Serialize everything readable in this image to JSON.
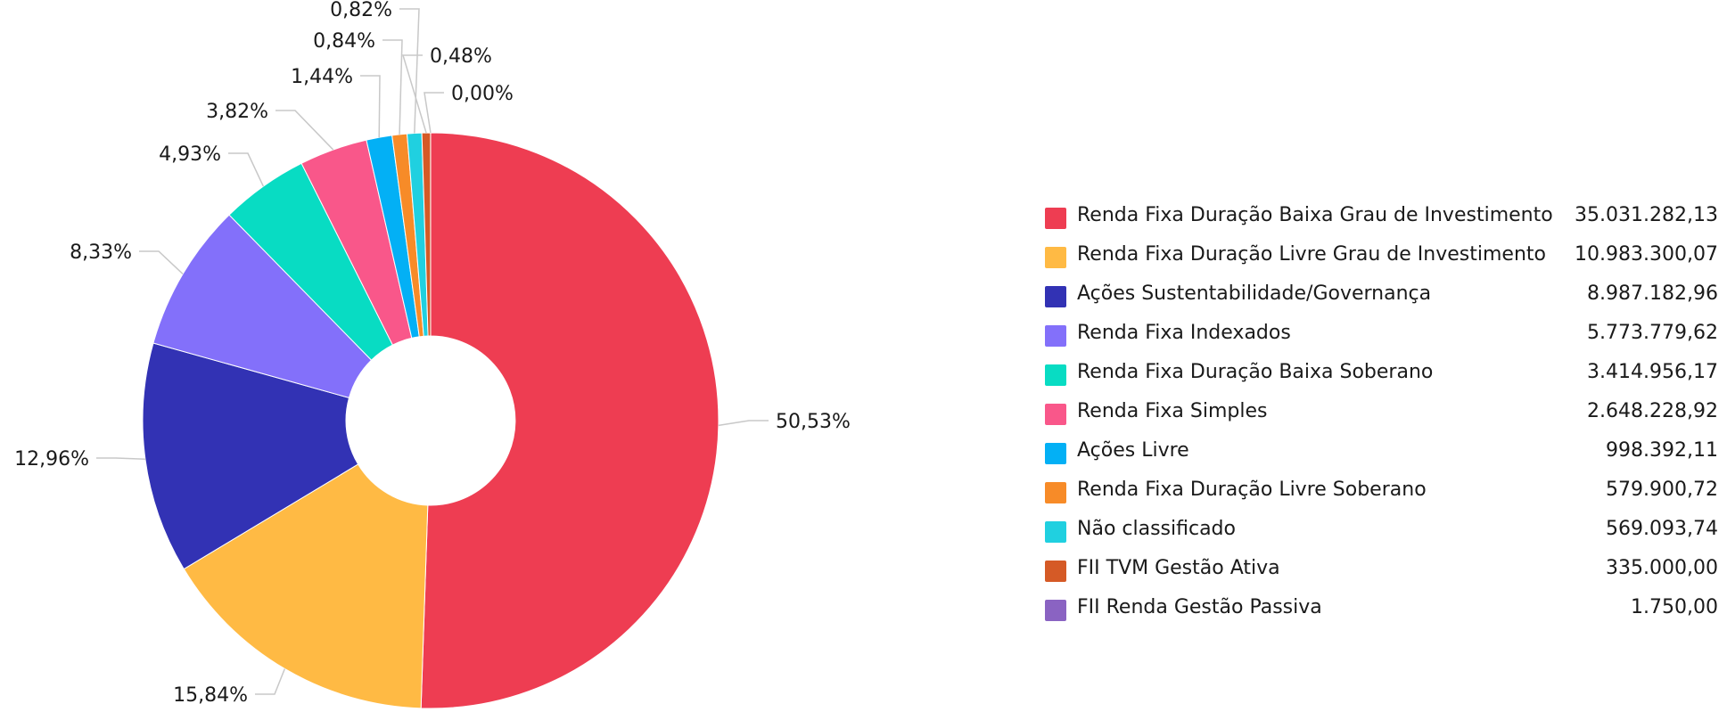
{
  "chart_data": {
    "type": "pie",
    "title": "",
    "donut": true,
    "legend_position": "right",
    "categories": [
      "Renda Fixa Duração Baixa Grau de Investimento",
      "Renda Fixa Duração Livre Grau de Investimento",
      "Ações Sustentabilidade/Governança",
      "Renda Fixa Indexados",
      "Renda Fixa Duração Baixa Soberano",
      "Renda Fixa Simples",
      "Ações Livre",
      "Renda Fixa Duração Livre Soberano",
      "Não classificado",
      "FII TVM Gestão Ativa",
      "FII Renda Gestão Passiva"
    ],
    "values": [
      35031282.13,
      10983300.07,
      8987182.96,
      5773779.62,
      3414956.17,
      2648228.92,
      998392.11,
      579900.72,
      569093.74,
      335000.0,
      1750.0
    ],
    "value_labels": [
      "35.031.282,13",
      "10.983.300,07",
      "8.987.182,96",
      "5.773.779,62",
      "3.414.956,17",
      "2.648.228,92",
      "998.392,11",
      "579.900,72",
      "569.093,74",
      "335.000,00",
      "1.750,00"
    ],
    "percent_labels": [
      "50,53%",
      "15,84%",
      "12,96%",
      "8,33%",
      "4,93%",
      "3,82%",
      "1,44%",
      "0,84%",
      "0,82%",
      "0,48%",
      "0,00%"
    ],
    "colors": [
      "#ee3d52",
      "#ffba44",
      "#3232b4",
      "#8370fa",
      "#08dcc3",
      "#f9578a",
      "#03b0f5",
      "#f78b28",
      "#20d0e0",
      "#d55a26",
      "#8a63c2"
    ]
  }
}
